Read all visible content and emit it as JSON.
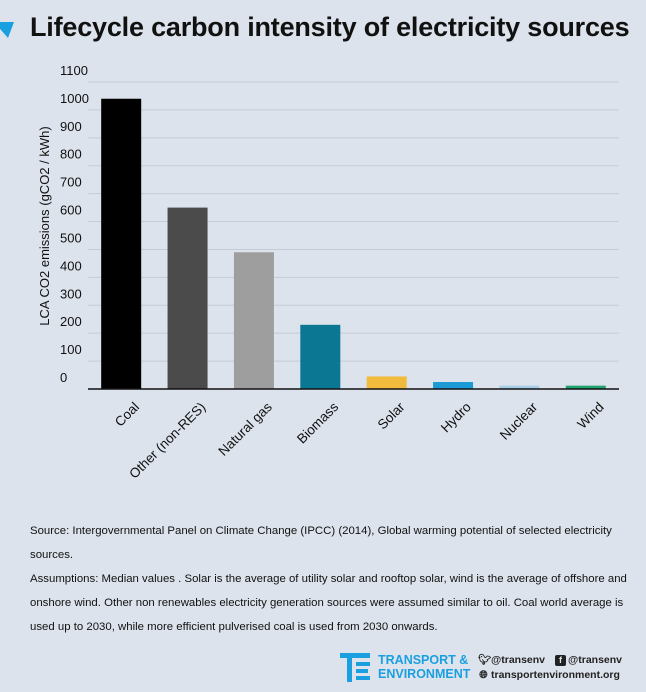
{
  "header": {
    "title": "Lifecycle carbon intensity of electricity sources"
  },
  "chart_data": {
    "type": "bar",
    "title": "Lifecycle carbon intensity of electricity sources",
    "xlabel": "",
    "ylabel": "LCA CO2 emissions (gCO2 / kWh)",
    "ylim": [
      0,
      1100
    ],
    "yticks": [
      0,
      100,
      200,
      300,
      400,
      500,
      600,
      700,
      800,
      900,
      1000,
      1100
    ],
    "grid": true,
    "categories": [
      "Coal",
      "Other (non-RES)",
      "Natural gas",
      "Biomass",
      "Solar",
      "Hydro",
      "Nuclear",
      "Wind"
    ],
    "values": [
      1040,
      650,
      490,
      230,
      45,
      25,
      12,
      12
    ],
    "colors": [
      "#000000",
      "#4b4b4b",
      "#9e9e9e",
      "#0b7792",
      "#f1bb3d",
      "#1b9ad6",
      "#a7cde9",
      "#20a36e"
    ]
  },
  "notes": {
    "source": "Source: Intergovernmental Panel on Climate Change (IPCC) (2014),  Global warming potential of selected electricity sources.",
    "assumptions": "Assumptions: Median values . Solar is the average of  utility solar and rooftop solar, wind is the average of offshore and onshore wind.  Other non renewables electricity generation sources were assumed similar to oil. Coal world average is used up to 2030, while more efficient pulverised coal is used from 2030 onwards."
  },
  "footer": {
    "logo_line1": "TRANSPORT &",
    "logo_line2": "ENVIRONMENT",
    "twitter": "@transenv",
    "facebook": "@transenv",
    "website": "transportenvironment.org",
    "accent": "#1aa0e0"
  }
}
